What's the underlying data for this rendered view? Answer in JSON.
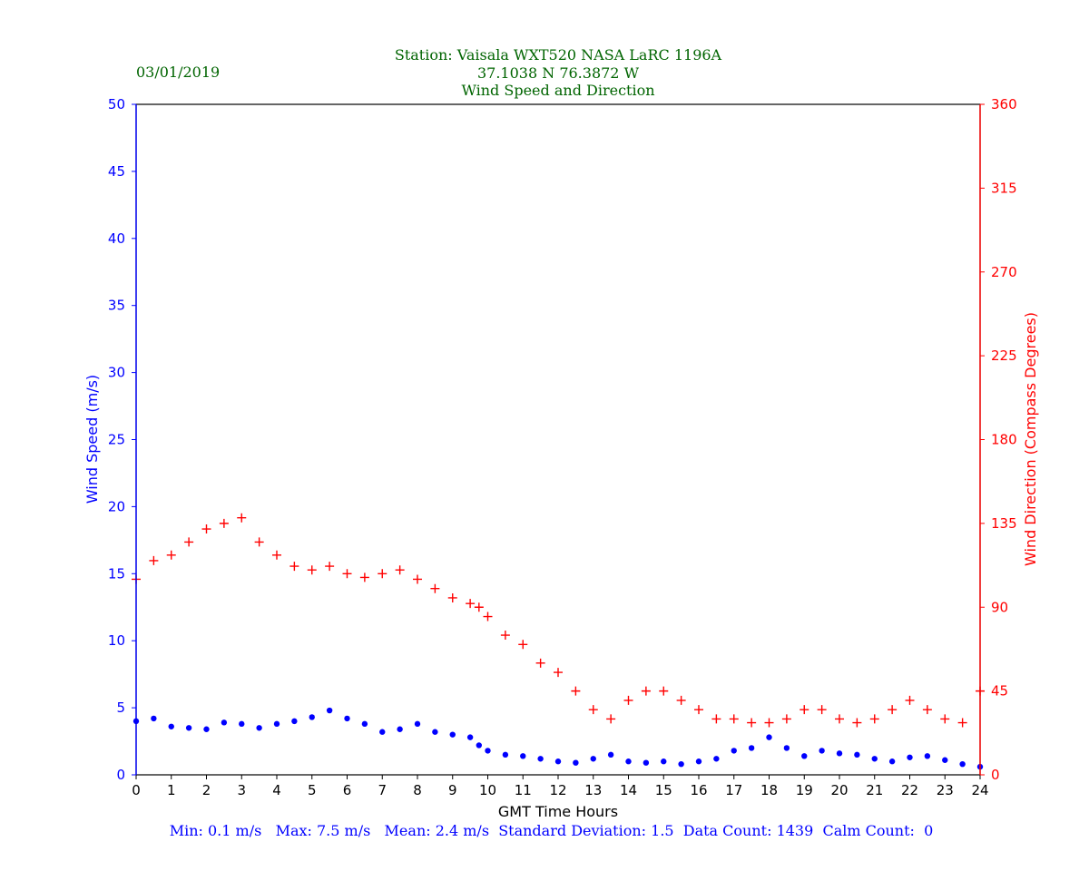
{
  "header": {
    "station_line": "Station:  Vaisala WXT520  NASA LaRC 1196A",
    "coords_line": "37.1038 N 76.3872 W",
    "chart_title": "Wind Speed and Direction",
    "date": "03/01/2019"
  },
  "footer": {
    "stats": "Min: 0.1 m/s   Max: 7.5 m/s   Mean: 2.4 m/s  Standard Deviation: 1.5  Data Count: 1439  Calm Count:  0"
  },
  "colors": {
    "speed": "#0000ff",
    "direction": "#ff0000",
    "title": "#006400",
    "axis": "#000000"
  },
  "chart_data": {
    "type": "scatter",
    "title": "Wind Speed and Direction",
    "xlabel": "GMT Time Hours",
    "ylabel": "Wind Speed (m/s)",
    "y2label": "Wind Direction (Compass Degrees)",
    "xlim": [
      0,
      24
    ],
    "ylim": [
      0,
      50
    ],
    "y2lim": [
      0,
      360
    ],
    "x_ticks": [
      "0",
      "1",
      "2",
      "3",
      "4",
      "5",
      "6",
      "7",
      "8",
      "9",
      "10",
      "11",
      "12",
      "13",
      "14",
      "15",
      "16",
      "17",
      "18",
      "19",
      "20",
      "21",
      "22",
      "23",
      "24"
    ],
    "y_ticks": [
      "0",
      "5",
      "10",
      "15",
      "20",
      "25",
      "30",
      "35",
      "40",
      "45",
      "50"
    ],
    "y2_ticks": [
      "0",
      "45",
      "90",
      "135",
      "180",
      "225",
      "270",
      "315",
      "360"
    ],
    "grid": false,
    "series": [
      {
        "name": "Wind Speed (m/s)",
        "marker": "dot",
        "axis": "left",
        "x": [
          0.0,
          0.5,
          1.0,
          1.5,
          2.0,
          2.5,
          3.0,
          3.5,
          4.0,
          4.5,
          5.0,
          5.5,
          6.0,
          6.5,
          7.0,
          7.5,
          8.0,
          8.5,
          9.0,
          9.5,
          9.75,
          10.0,
          10.5,
          11.0,
          11.5,
          12.0,
          12.5,
          13.0,
          13.5,
          14.0,
          14.5,
          15.0,
          15.5,
          16.0,
          16.5,
          17.0,
          17.5,
          18.0,
          18.5,
          19.0,
          19.5,
          20.0,
          20.5,
          21.0,
          21.5,
          22.0,
          22.5,
          23.0,
          23.5,
          24.0
        ],
        "y": [
          4.0,
          4.2,
          3.6,
          3.5,
          3.4,
          3.9,
          3.8,
          3.5,
          3.8,
          4.0,
          4.3,
          4.8,
          4.2,
          3.8,
          3.2,
          3.4,
          3.8,
          3.2,
          3.0,
          2.8,
          2.2,
          1.8,
          1.5,
          1.4,
          1.2,
          1.0,
          0.9,
          1.2,
          1.5,
          1.0,
          0.9,
          1.0,
          0.8,
          1.0,
          1.2,
          1.8,
          2.0,
          2.8,
          2.0,
          1.4,
          1.8,
          1.6,
          1.5,
          1.2,
          1.0,
          1.3,
          1.4,
          1.1,
          0.8,
          0.6
        ]
      },
      {
        "name": "Wind Direction (Compass Degrees)",
        "marker": "plus",
        "axis": "right",
        "x": [
          0.0,
          0.5,
          1.0,
          1.5,
          2.0,
          2.5,
          3.0,
          3.5,
          4.0,
          4.5,
          5.0,
          5.5,
          6.0,
          6.5,
          7.0,
          7.5,
          8.0,
          8.5,
          9.0,
          9.5,
          9.75,
          10.0,
          10.5,
          11.0,
          11.5,
          12.0,
          12.5,
          13.0,
          13.5,
          14.0,
          14.5,
          15.0,
          15.5,
          16.0,
          16.5,
          17.0,
          17.5,
          18.0,
          18.5,
          19.0,
          19.5,
          20.0,
          20.5,
          21.0,
          21.5,
          22.0,
          22.5,
          23.0,
          23.5,
          24.0
        ],
        "y": [
          105,
          115,
          118,
          125,
          132,
          135,
          138,
          125,
          118,
          112,
          110,
          112,
          108,
          106,
          108,
          110,
          105,
          100,
          95,
          92,
          90,
          85,
          75,
          70,
          60,
          55,
          45,
          35,
          30,
          40,
          45,
          45,
          40,
          35,
          30,
          30,
          28,
          28,
          30,
          35,
          35,
          30,
          28,
          30,
          35,
          40,
          35,
          30,
          28,
          45
        ]
      }
    ]
  }
}
